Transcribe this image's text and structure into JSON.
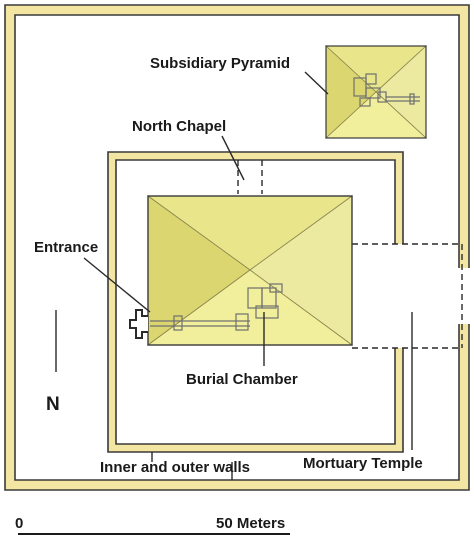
{
  "labels": {
    "subsidiary_pyramid": "Subsidiary Pyramid",
    "north_chapel": "North Chapel",
    "entrance": "Entrance",
    "burial_chamber": "Burial Chamber",
    "north": "N",
    "walls": "Inner and outer walls",
    "mortuary_temple": "Mortuary Temple"
  },
  "scale": {
    "start": "0",
    "end": "50 Meters"
  },
  "colors": {
    "pyramid_top": "#e8e58a",
    "pyramid_left": "#dcd670",
    "pyramid_right": "#ece9a0",
    "pyramid_bottom": "#f2ef9c",
    "wall_fill": "#f3e6a3",
    "outline": "#3a3a3a"
  }
}
